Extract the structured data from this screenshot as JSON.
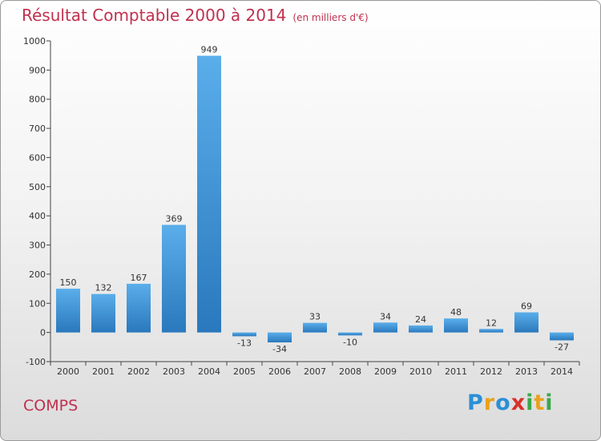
{
  "title": "Résultat Comptable 2000 à 2014",
  "unit_note": "(en milliers d'€)",
  "commune": "COMPS",
  "logo": {
    "letters": [
      "P",
      "r",
      "o",
      "x",
      "i",
      "t",
      "i"
    ],
    "colors": [
      "#2b8fd6",
      "#e8a21a",
      "#2b8fd6",
      "#d8302c",
      "#3aa84b",
      "#e8a21a",
      "#3aa84b"
    ]
  },
  "colors": {
    "bar_top": "#5aaeea",
    "bar_bottom": "#2a78bd",
    "accent": "#c0304f"
  },
  "chart_data": {
    "type": "bar",
    "title": "Résultat Comptable 2000 à 2014",
    "xlabel": "",
    "ylabel": "",
    "categories": [
      "2000",
      "2001",
      "2002",
      "2003",
      "2004",
      "2005",
      "2006",
      "2007",
      "2008",
      "2009",
      "2010",
      "2011",
      "2012",
      "2013",
      "2014"
    ],
    "values": [
      150,
      132,
      167,
      369,
      949,
      -13,
      -34,
      33,
      -10,
      34,
      24,
      48,
      12,
      69,
      -27
    ],
    "value_labels": [
      "150",
      "132",
      "167",
      "369",
      "949",
      "-13",
      "-34",
      "33",
      "-10",
      "34",
      "24",
      "48",
      "12",
      "69",
      "-27"
    ],
    "ylim": [
      -100,
      1000
    ],
    "yticks": [
      -100,
      0,
      100,
      200,
      300,
      400,
      500,
      600,
      700,
      800,
      900,
      1000
    ],
    "ytick_labels": [
      "-100",
      "0",
      "100",
      "200",
      "300",
      "400",
      "500",
      "600",
      "700",
      "800",
      "900",
      "1000"
    ],
    "grid": false,
    "legend": "none"
  }
}
